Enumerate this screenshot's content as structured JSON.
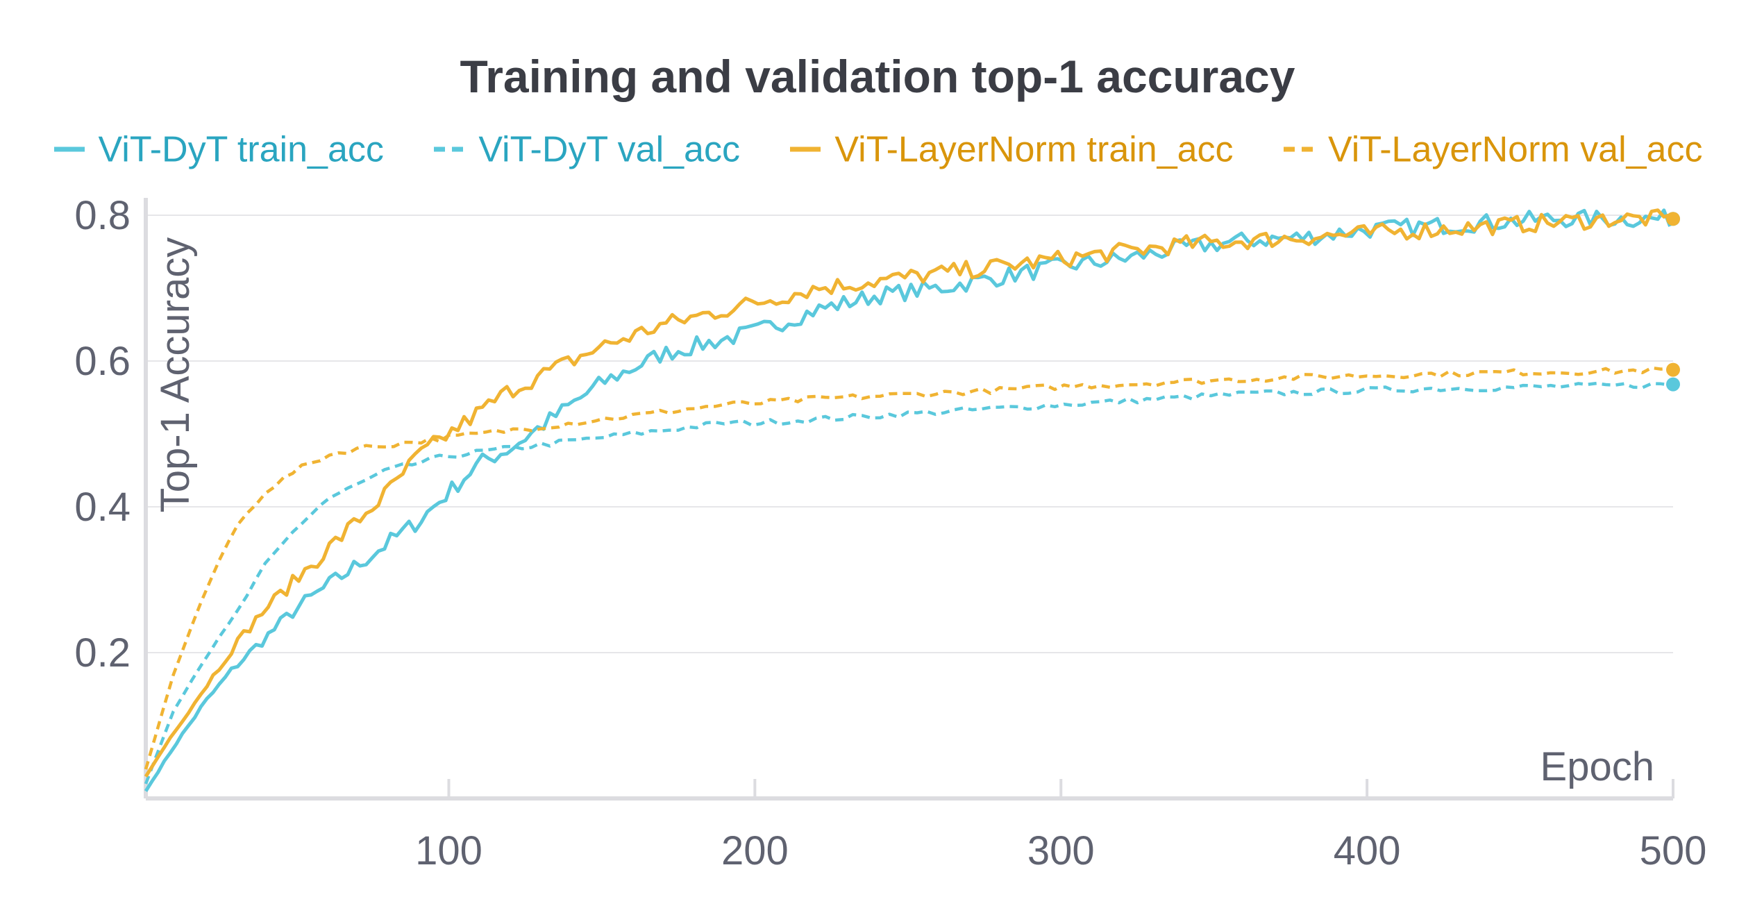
{
  "chart_data": {
    "type": "line",
    "title": "Training and validation top-1 accuracy",
    "xlabel": "Epoch",
    "ylabel": "Top-1 Accuracy",
    "xlim": [
      1,
      500
    ],
    "ylim": [
      0,
      0.8
    ],
    "x_ticks": [
      100,
      200,
      300,
      400,
      500
    ],
    "y_ticks": [
      0.2,
      0.4,
      0.6,
      0.8
    ],
    "grid": "horizontal",
    "legend_position": "top",
    "x": [
      1,
      10,
      20,
      30,
      40,
      50,
      60,
      70,
      80,
      90,
      100,
      110,
      120,
      130,
      140,
      150,
      160,
      170,
      180,
      190,
      200,
      220,
      240,
      260,
      280,
      300,
      320,
      340,
      360,
      380,
      400,
      420,
      440,
      460,
      480,
      500
    ],
    "series": [
      {
        "name": "ViT-DyT train_acc",
        "color": "#5ac8dc",
        "style": "solid",
        "values": [
          0.01,
          0.07,
          0.13,
          0.18,
          0.22,
          0.26,
          0.29,
          0.32,
          0.35,
          0.38,
          0.42,
          0.46,
          0.48,
          0.51,
          0.54,
          0.57,
          0.59,
          0.61,
          0.62,
          0.63,
          0.64,
          0.67,
          0.69,
          0.7,
          0.715,
          0.73,
          0.74,
          0.755,
          0.765,
          0.77,
          0.78,
          0.785,
          0.79,
          0.795,
          0.795,
          0.795
        ]
      },
      {
        "name": "ViT-DyT val_acc",
        "color": "#5ac8dc",
        "style": "dashed",
        "values": [
          0.02,
          0.12,
          0.19,
          0.25,
          0.32,
          0.37,
          0.41,
          0.43,
          0.45,
          0.46,
          0.47,
          0.475,
          0.48,
          0.485,
          0.49,
          0.495,
          0.5,
          0.505,
          0.51,
          0.515,
          0.515,
          0.52,
          0.525,
          0.53,
          0.535,
          0.54,
          0.545,
          0.55,
          0.555,
          0.557,
          0.56,
          0.562,
          0.563,
          0.565,
          0.566,
          0.568
        ]
      },
      {
        "name": "ViT-LayerNorm train_acc",
        "color": "#f0b332",
        "style": "solid",
        "values": [
          0.03,
          0.09,
          0.15,
          0.21,
          0.26,
          0.3,
          0.34,
          0.38,
          0.42,
          0.47,
          0.5,
          0.53,
          0.56,
          0.58,
          0.6,
          0.62,
          0.635,
          0.65,
          0.66,
          0.67,
          0.68,
          0.7,
          0.71,
          0.72,
          0.73,
          0.74,
          0.75,
          0.76,
          0.765,
          0.77,
          0.775,
          0.78,
          0.785,
          0.79,
          0.795,
          0.795
        ]
      },
      {
        "name": "ViT-LayerNorm val_acc",
        "color": "#f0b332",
        "style": "dashed",
        "values": [
          0.04,
          0.17,
          0.28,
          0.37,
          0.42,
          0.45,
          0.47,
          0.48,
          0.485,
          0.49,
          0.495,
          0.5,
          0.505,
          0.51,
          0.515,
          0.52,
          0.525,
          0.53,
          0.535,
          0.54,
          0.542,
          0.548,
          0.552,
          0.556,
          0.56,
          0.565,
          0.568,
          0.572,
          0.575,
          0.578,
          0.58,
          0.582,
          0.584,
          0.585,
          0.586,
          0.588
        ]
      }
    ]
  }
}
